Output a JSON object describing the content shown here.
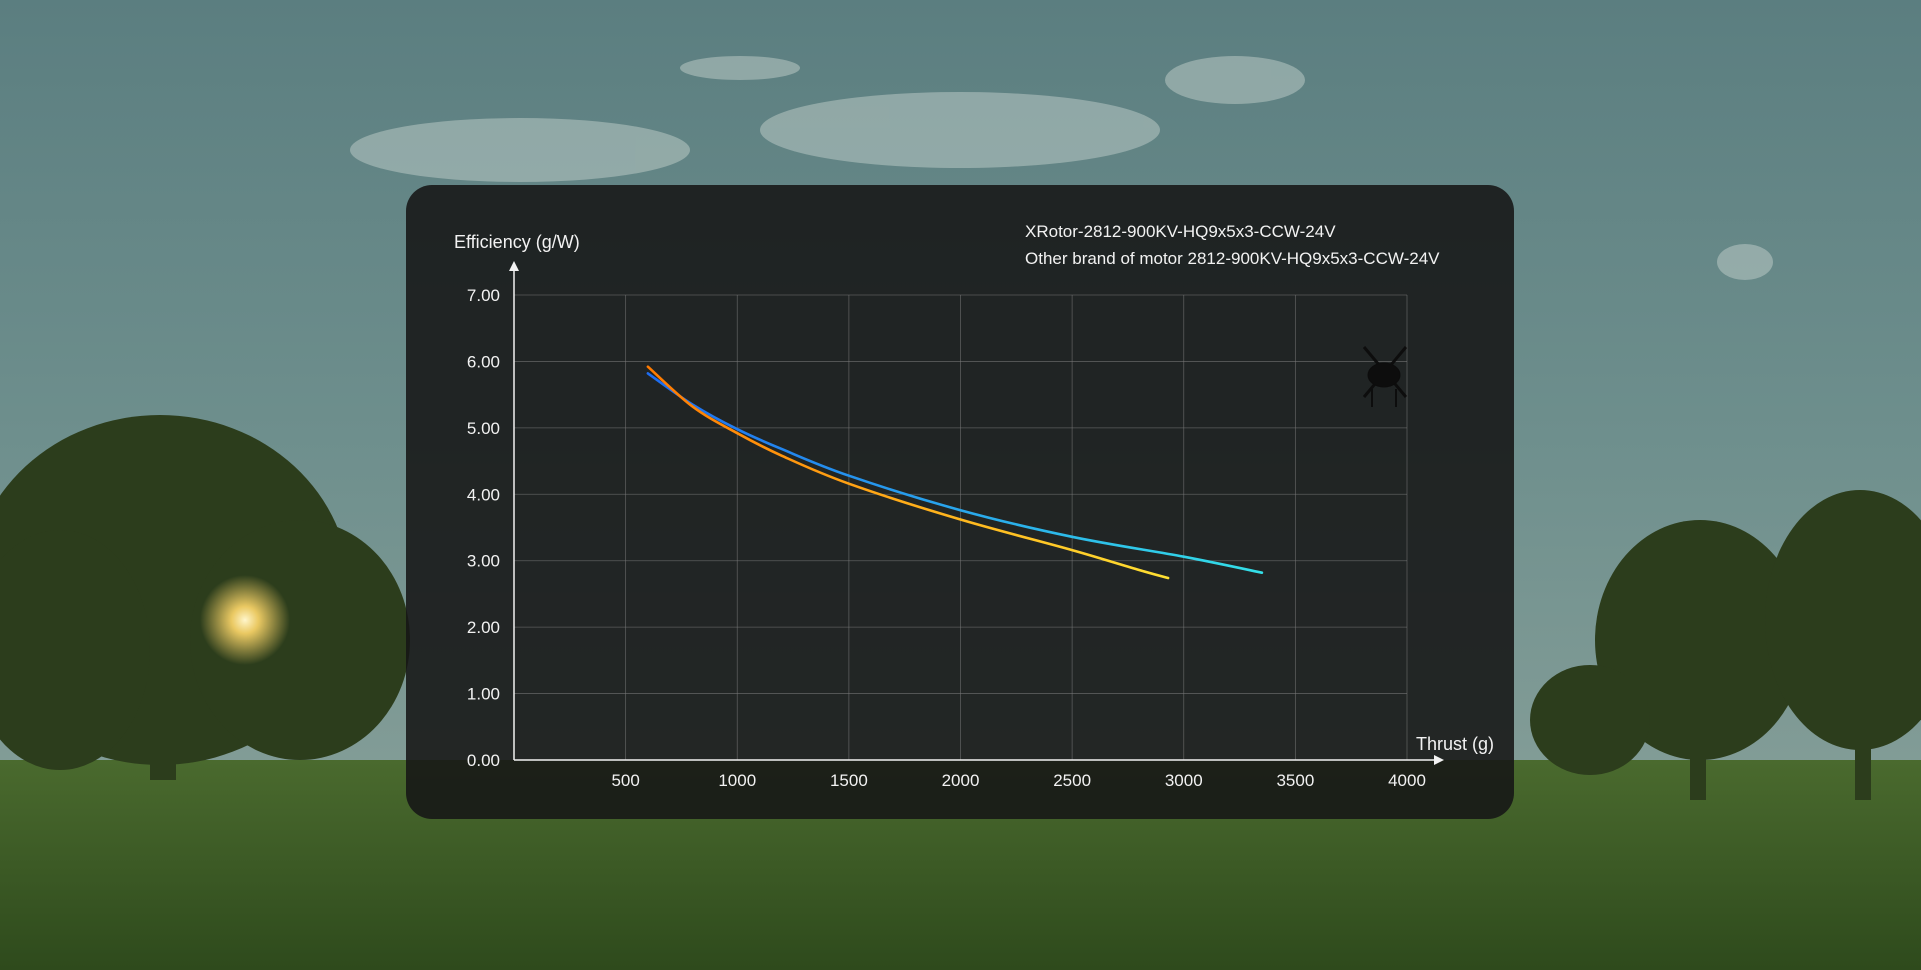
{
  "chart_data": {
    "type": "line",
    "xlabel": "Thrust (g)",
    "ylabel": "Efficiency (g/W)",
    "xlim": [
      0,
      4000
    ],
    "ylim": [
      0,
      7
    ],
    "x_ticks": [
      "500",
      "1000",
      "1500",
      "2000",
      "2500",
      "3000",
      "3500",
      "4000"
    ],
    "y_ticks": [
      "0.00",
      "1.00",
      "2.00",
      "3.00",
      "4.00",
      "5.00",
      "6.00",
      "7.00"
    ],
    "grid": true,
    "legend_position": "top-right",
    "series": [
      {
        "name": "XRotor-2812-900KV-HQ9x5x3-CCW-24V",
        "color_start": "#1e6cf0",
        "color_end": "#34e0e8",
        "x": [
          600,
          800,
          1000,
          1200,
          1500,
          2000,
          2500,
          3000,
          3350
        ],
        "y": [
          5.82,
          5.35,
          4.98,
          4.68,
          4.28,
          3.76,
          3.36,
          3.06,
          2.82
        ]
      },
      {
        "name": "Other brand of motor 2812-900KV-HQ9x5x3-CCW-24V",
        "color_start": "#ff7a00",
        "color_end": "#ffe033",
        "x": [
          600,
          800,
          1000,
          1200,
          1500,
          2000,
          2500,
          2800,
          2930
        ],
        "y": [
          5.92,
          5.32,
          4.92,
          4.58,
          4.16,
          3.62,
          3.16,
          2.86,
          2.74
        ]
      }
    ]
  }
}
